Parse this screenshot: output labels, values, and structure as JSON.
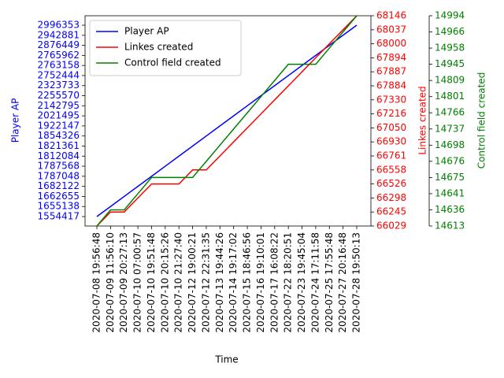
{
  "chart_data": {
    "type": "line",
    "xlabel": "Time",
    "ylabel": "Player AP",
    "y2label": "Linkes created",
    "y3label": "Control field created",
    "legend": "upper left",
    "categories": [
      "2020-07-08 19:56:48",
      "2020-07-09 11:56:10",
      "2020-07-09 20:27:13",
      "2020-07-10 07:00:57",
      "2020-07-10 19:51:48",
      "2020-07-10 20:15:26",
      "2020-07-10 21:27:40",
      "2020-07-12 19:00:21",
      "2020-07-12 22:31:35",
      "2020-07-13 19:44:26",
      "2020-07-14 19:17:02",
      "2020-07-15 18:46:56",
      "2020-07-16 19:10:01",
      "2020-07-17 16:08:22",
      "2020-07-22 18:20:51",
      "2020-07-23 19:45:04",
      "2020-07-24 17:11:58",
      "2020-07-25 17:55:48",
      "2020-07-27 20:16:48",
      "2020-07-28 19:50:13"
    ],
    "yticks": [
      1554417,
      1655138,
      1662655,
      1682122,
      1787048,
      1787568,
      1812084,
      1821361,
      1854326,
      1922147,
      2021495,
      2142795,
      2255570,
      2323733,
      2752444,
      2763158,
      2765962,
      2876449,
      2942881,
      2996353
    ],
    "y2ticks": [
      66029,
      66245,
      66298,
      66526,
      66558,
      66761,
      66930,
      67050,
      67216,
      67330,
      67884,
      67887,
      67894,
      68000,
      68037,
      68146
    ],
    "y3ticks": [
      14613,
      14636,
      14641,
      14675,
      14676,
      14698,
      14737,
      14766,
      14801,
      14809,
      14945,
      14958,
      14966,
      14994
    ],
    "series": [
      {
        "name": "Player AP",
        "color": "#0000ff",
        "axis": "y",
        "values": [
          1554417,
          1655138,
          1662655,
          1682122,
          1787048,
          1787568,
          1812084,
          1821361,
          1854326,
          1922147,
          2021495,
          2142795,
          2255570,
          2323733,
          2752444,
          2763158,
          2765962,
          2876449,
          2942881,
          2996353
        ]
      },
      {
        "name": "Linkes created",
        "color": "#ff0000",
        "axis": "y2",
        "values": [
          66029,
          66245,
          66245,
          66298,
          66526,
          66526,
          66526,
          66558,
          66558,
          66761,
          66930,
          67050,
          67216,
          67330,
          67884,
          67887,
          67894,
          68000,
          68037,
          68146
        ]
      },
      {
        "name": "Control field created",
        "color": "#008000",
        "axis": "y3",
        "values": [
          14613,
          14636,
          14636,
          14641,
          14675,
          14675,
          14675,
          14675,
          14676,
          14698,
          14737,
          14766,
          14801,
          14809,
          14945,
          14945,
          14945,
          14958,
          14966,
          14994
        ]
      }
    ]
  }
}
